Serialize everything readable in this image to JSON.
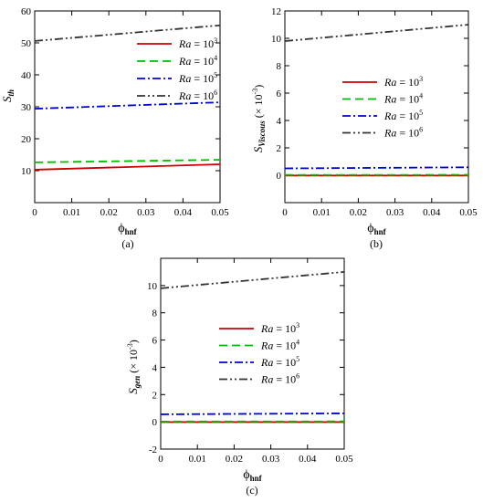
{
  "chart_data": [
    {
      "type": "line",
      "panel_label": "(a)",
      "xlabel": "ϕhnf",
      "ylabel": "Sth",
      "xlim": [
        0,
        0.05
      ],
      "ylim": [
        0,
        60
      ],
      "xticks": [
        "0",
        "0.01",
        "0.02",
        "0.03",
        "0.04",
        "0.05"
      ],
      "yticks": [
        "10",
        "20",
        "30",
        "40",
        "50",
        "60"
      ],
      "grid": false,
      "legend_position": "top-right",
      "series": [
        {
          "name": "Ra = 10^3",
          "color": "#cc0000",
          "dash": "solid",
          "x": [
            0,
            0.05
          ],
          "y": [
            10.3,
            12.0
          ]
        },
        {
          "name": "Ra = 10^4",
          "color": "#00bb00",
          "dash": "dash",
          "x": [
            0,
            0.05
          ],
          "y": [
            12.6,
            13.4
          ]
        },
        {
          "name": "Ra = 10^5",
          "color": "#0000dd",
          "dash": "dashdot",
          "x": [
            0,
            0.05
          ],
          "y": [
            29.4,
            31.4
          ]
        },
        {
          "name": "Ra = 10^6",
          "color": "#333333",
          "dash": "dashdotdot",
          "x": [
            0,
            0.05
          ],
          "y": [
            50.6,
            55.5
          ]
        }
      ]
    },
    {
      "type": "line",
      "panel_label": "(b)",
      "xlabel": "ϕhnf",
      "ylabel": "SViscous (× 10^-3)",
      "xlim": [
        0,
        0.05
      ],
      "ylim": [
        -2,
        12
      ],
      "xticks": [
        "0",
        "0.01",
        "0.02",
        "0.03",
        "0.04",
        "0.05"
      ],
      "yticks": [
        "0",
        "2",
        "4",
        "6",
        "8",
        "10",
        "12"
      ],
      "grid": false,
      "legend_position": "center-right",
      "series": [
        {
          "name": "Ra = 10^3",
          "color": "#cc0000",
          "dash": "solid",
          "x": [
            0,
            0.05
          ],
          "y": [
            -0.02,
            -0.02
          ]
        },
        {
          "name": "Ra = 10^4",
          "color": "#00bb00",
          "dash": "dash",
          "x": [
            0,
            0.05
          ],
          "y": [
            0.02,
            0.03
          ]
        },
        {
          "name": "Ra = 10^5",
          "color": "#0000dd",
          "dash": "dashdot",
          "x": [
            0,
            0.05
          ],
          "y": [
            0.5,
            0.58
          ]
        },
        {
          "name": "Ra = 10^6",
          "color": "#333333",
          "dash": "dashdotdot",
          "x": [
            0,
            0.05
          ],
          "y": [
            9.8,
            11.0
          ]
        }
      ]
    },
    {
      "type": "line",
      "panel_label": "(c)",
      "xlabel": "ϕhnf",
      "ylabel": "Sgen (× 10^-3)",
      "xlim": [
        0,
        0.05
      ],
      "ylim": [
        -2,
        12
      ],
      "xticks": [
        "0",
        "0.01",
        "0.02",
        "0.03",
        "0.04",
        "0.05"
      ],
      "yticks": [
        "-2",
        "0",
        "2",
        "4",
        "6",
        "8",
        "10"
      ],
      "grid": false,
      "legend_position": "center-right",
      "series": [
        {
          "name": "Ra = 10^3",
          "color": "#cc0000",
          "dash": "solid",
          "x": [
            0,
            0.05
          ],
          "y": [
            -0.02,
            -0.02
          ]
        },
        {
          "name": "Ra = 10^4",
          "color": "#00bb00",
          "dash": "dash",
          "x": [
            0,
            0.05
          ],
          "y": [
            0.02,
            0.03
          ]
        },
        {
          "name": "Ra = 10^5",
          "color": "#0000dd",
          "dash": "dashdot",
          "x": [
            0,
            0.05
          ],
          "y": [
            0.55,
            0.62
          ]
        },
        {
          "name": "Ra = 10^6",
          "color": "#333333",
          "dash": "dashdotdot",
          "x": [
            0,
            0.05
          ],
          "y": [
            9.8,
            11.0
          ]
        }
      ]
    }
  ]
}
